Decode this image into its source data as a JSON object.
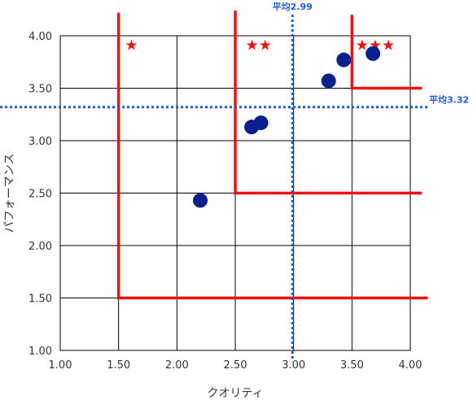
{
  "chart_data": {
    "type": "scatter",
    "xlabel": "クオリティ",
    "ylabel": "パフォーマンス",
    "xlim": [
      1.0,
      4.0
    ],
    "ylim": [
      1.0,
      4.0
    ],
    "x_ticks": [
      "1.00",
      "1.50",
      "2.00",
      "2.50",
      "3.00",
      "3.50",
      "4.00"
    ],
    "y_ticks": [
      "1.00",
      "1.50",
      "2.00",
      "2.50",
      "3.00",
      "3.50",
      "4.00"
    ],
    "grid": true,
    "points": [
      {
        "x": 2.2,
        "y": 2.43
      },
      {
        "x": 2.64,
        "y": 3.13
      },
      {
        "x": 2.72,
        "y": 3.17
      },
      {
        "x": 3.3,
        "y": 3.57
      },
      {
        "x": 3.43,
        "y": 3.77
      },
      {
        "x": 3.68,
        "y": 3.83
      }
    ],
    "point_color": "#0b1f8f",
    "averages": {
      "x": {
        "value": 2.99,
        "label": "平均2.99"
      },
      "y": {
        "value": 3.32,
        "label": "平均3.32"
      }
    },
    "average_color": "#1f5bd6",
    "zones": [
      {
        "x": 1.5,
        "y": 1.5,
        "x_end": 4.15,
        "y_top": 4.22,
        "stars": "★",
        "star_x": 1.61,
        "star_y": 3.92
      },
      {
        "x": 2.5,
        "y": 2.5,
        "x_end": 4.1,
        "y_top": 4.24,
        "stars": "★★",
        "star_x": 2.7,
        "star_y": 3.92
      },
      {
        "x": 3.5,
        "y": 3.5,
        "x_end": 4.1,
        "y_top": 4.2,
        "stars": "★★★",
        "star_x": 3.7,
        "star_y": 3.92
      }
    ],
    "zone_color": "#ee1111"
  }
}
